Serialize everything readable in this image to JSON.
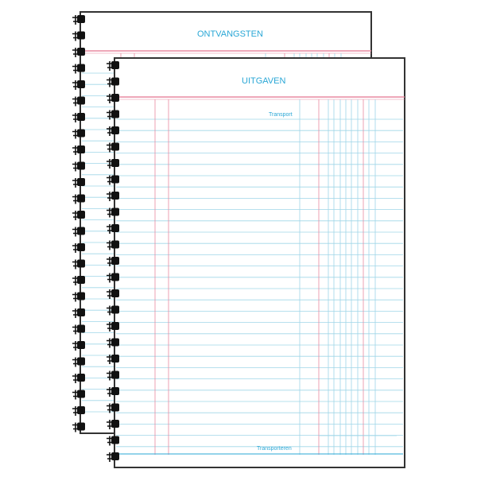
{
  "back_notebook": {
    "title": "ONTVANGSTEN"
  },
  "front_notebook": {
    "title": "UITGAVEN",
    "top_label": "Transport",
    "bottom_label": "Transporteren"
  },
  "colors": {
    "heading": "#2aa7d6",
    "rule_blue": "#9fd6e8",
    "rule_pink": "#e88aa0",
    "border": "#333333",
    "spiral": "#111111"
  }
}
